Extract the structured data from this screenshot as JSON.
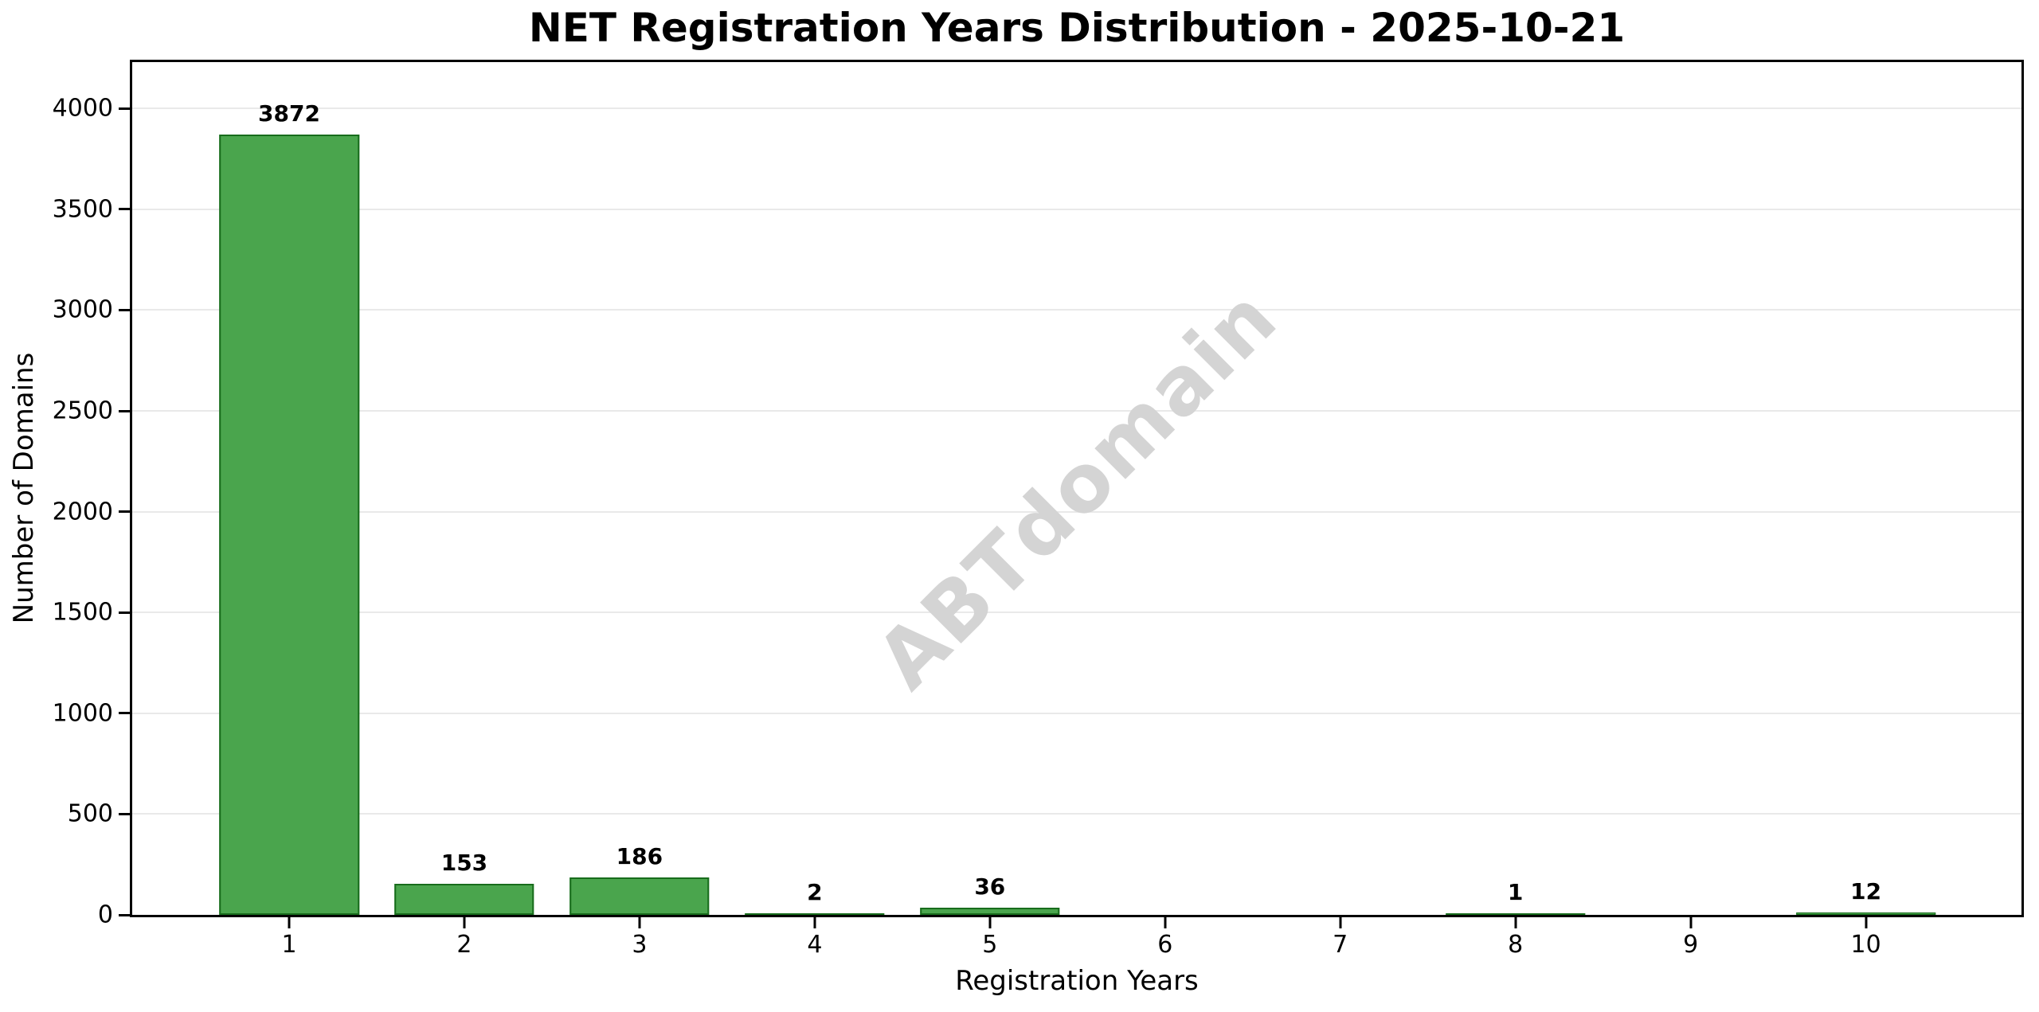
{
  "figure": {
    "watermark": "ABTdomain"
  },
  "chart_data": {
    "type": "bar",
    "title": "NET Registration Years Distribution - 2025-10-21",
    "xlabel": "Registration Years",
    "ylabel": "Number of Domains",
    "categories": [
      "1",
      "2",
      "3",
      "4",
      "5",
      "6",
      "7",
      "8",
      "9",
      "10"
    ],
    "values": [
      3872,
      153,
      186,
      2,
      36,
      0,
      0,
      1,
      0,
      12
    ],
    "bar_labels": [
      "3872",
      "153",
      "186",
      "2",
      "36",
      "",
      "",
      "1",
      "",
      "12"
    ],
    "yticks": [
      0,
      500,
      1000,
      1500,
      2000,
      2500,
      3000,
      3500,
      4000
    ],
    "ytick_labels": [
      "0",
      "500",
      "1000",
      "1500",
      "2000",
      "2500",
      "3000",
      "3500",
      "4000"
    ],
    "ylim": [
      0,
      4230
    ],
    "grid": "horizontal",
    "legend_position": "none",
    "colors": {
      "bar_fill": "#4aa54d",
      "bar_edge": "#186c1c",
      "grid": "#e9e9e9",
      "spine": "#000000",
      "text": "#000000",
      "watermark": "#d4d4d4"
    }
  }
}
